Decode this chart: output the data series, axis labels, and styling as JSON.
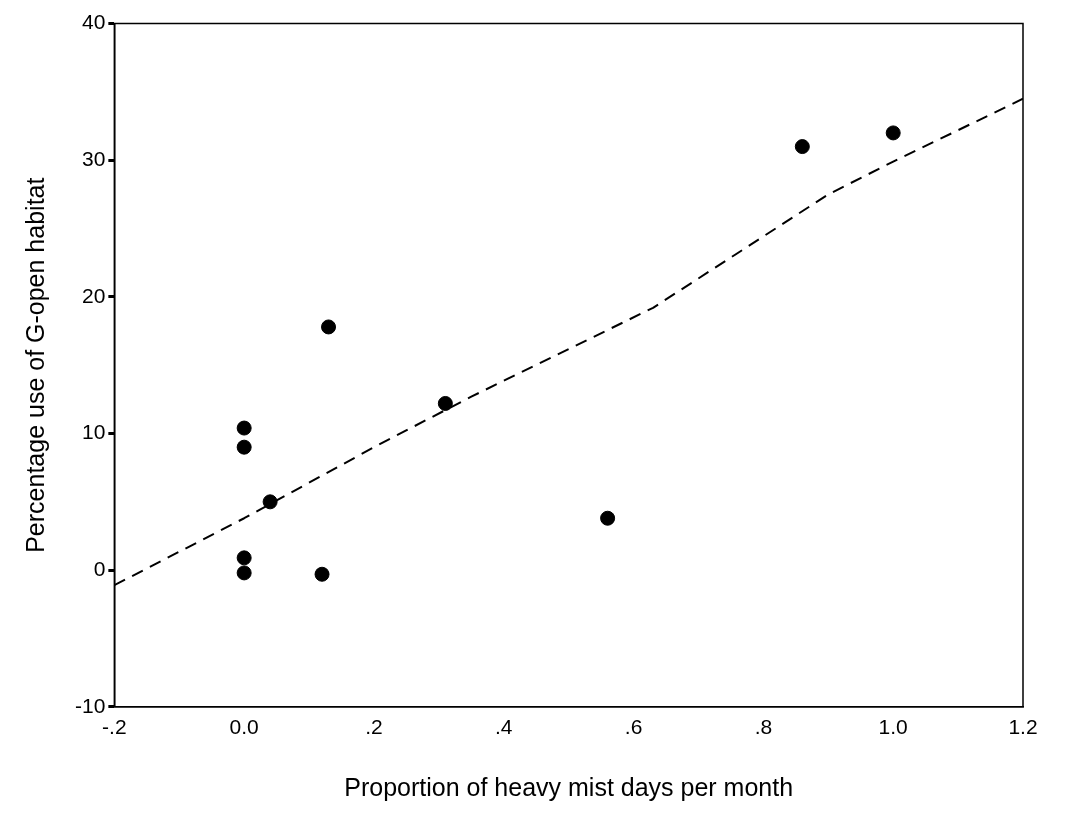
{
  "chart_data": {
    "type": "scatter",
    "xlabel": "Proportion of heavy mist days per month",
    "ylabel": "Percentage use of G-open habitat",
    "xlim": [
      -0.2,
      1.2
    ],
    "xticks": [
      {
        "value": -0.2,
        "label": "-.2"
      },
      {
        "value": 0,
        "label": "0.0"
      },
      {
        "value": 0.2,
        "label": ".2"
      },
      {
        "value": 0.4,
        "label": ".4"
      },
      {
        "value": 0.6,
        "label": ".6"
      },
      {
        "value": 0.8,
        "label": ".8"
      },
      {
        "value": 1,
        "label": "1.0"
      },
      {
        "value": 1.2,
        "label": "1.2"
      }
    ],
    "ylim": [
      -10,
      40
    ],
    "yticks": [
      -10,
      0,
      10,
      20,
      30,
      40
    ],
    "series": [
      {
        "type": "scatter",
        "color": "#000000",
        "marker": "circle",
        "x": [
          0.0,
          0.0,
          0.04,
          0.0,
          0.0,
          0.12,
          0.13,
          0.31,
          0.56,
          0.86,
          1.0
        ],
        "values": [
          10.4,
          9.0,
          5.0,
          0.9,
          -0.2,
          -0.3,
          17.8,
          12.2,
          3.8,
          31.0,
          32.0
        ]
      },
      {
        "type": "line",
        "color": "#000000",
        "marker": "none",
        "line_style": "dashed",
        "x": [
          -0.2,
          0.0,
          0.2,
          0.35,
          0.63,
          0.9,
          1.0,
          1.2
        ],
        "values": [
          -1.1,
          3.8,
          9.0,
          12.7,
          19.2,
          27.5,
          29.9,
          34.5
        ]
      }
    ]
  }
}
